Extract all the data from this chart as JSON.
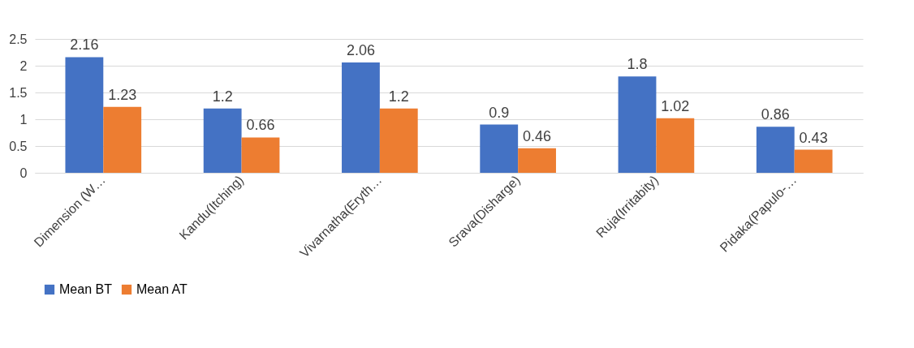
{
  "chart_data": {
    "type": "bar",
    "categories": [
      "Dimension (W…",
      "Kandu(Itching)",
      "Vivarnatha(Eryth…",
      "Srava(Disharge)",
      "Ruja(Irritabity)",
      "Pidaka(Papulo-…"
    ],
    "series": [
      {
        "name": "Mean BT",
        "color": "#4472c4",
        "values": [
          2.16,
          1.2,
          2.06,
          0.9,
          1.8,
          0.86
        ]
      },
      {
        "name": "Mean AT",
        "color": "#ed7d31",
        "values": [
          1.23,
          0.66,
          1.2,
          0.46,
          1.02,
          0.43
        ]
      }
    ],
    "ylim": [
      0,
      2.5
    ],
    "yticks": [
      0,
      0.5,
      1,
      1.5,
      2,
      2.5
    ],
    "grid": "y",
    "legend": "bottom",
    "data_labels": true
  }
}
